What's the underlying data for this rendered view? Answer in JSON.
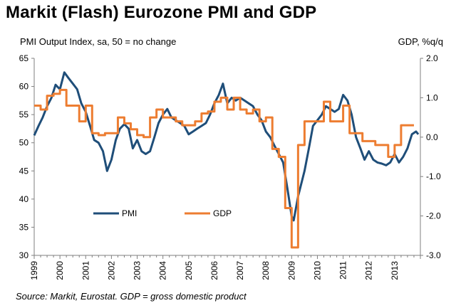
{
  "chart_data": {
    "type": "line",
    "title": "Markit (Flash) Eurozone PMI and GDP",
    "left_axis": {
      "label": "PMI Output Index, sa, 50 = no change",
      "ylim": [
        30,
        65
      ],
      "ticks": [
        "65",
        "60",
        "55",
        "50",
        "45",
        "40",
        "35",
        "30"
      ]
    },
    "right_axis": {
      "label": "GDP, %q/q",
      "ylim": [
        -3.0,
        2.0
      ],
      "ticks": [
        "2.0",
        "1.0",
        "0.0",
        "-1.0",
        "-2.0",
        "-3.0"
      ]
    },
    "x_ticks": [
      "1999",
      "2000",
      "2001",
      "2002",
      "2003",
      "2004",
      "2005",
      "2006",
      "2007",
      "2008",
      "2009",
      "2010",
      "2011",
      "2012",
      "2013"
    ],
    "xlim": [
      1999.0,
      2014.0
    ],
    "grid": false,
    "legend": "inside-bottom-left",
    "series": [
      {
        "name": "PMI",
        "axis": "left",
        "color": "#1F4E79",
        "points": [
          [
            1999.0,
            51.3
          ],
          [
            1999.17,
            53.0
          ],
          [
            1999.33,
            54.5
          ],
          [
            1999.5,
            56.5
          ],
          [
            1999.67,
            58.0
          ],
          [
            1999.83,
            60.3
          ],
          [
            2000.0,
            59.5
          ],
          [
            2000.17,
            62.5
          ],
          [
            2000.33,
            61.5
          ],
          [
            2000.5,
            60.5
          ],
          [
            2000.67,
            59.5
          ],
          [
            2000.83,
            57.0
          ],
          [
            2001.0,
            55.5
          ],
          [
            2001.17,
            53.0
          ],
          [
            2001.33,
            50.5
          ],
          [
            2001.5,
            50.0
          ],
          [
            2001.67,
            48.5
          ],
          [
            2001.83,
            45.0
          ],
          [
            2002.0,
            47.0
          ],
          [
            2002.17,
            50.5
          ],
          [
            2002.33,
            52.5
          ],
          [
            2002.5,
            53.3
          ],
          [
            2002.67,
            52.5
          ],
          [
            2002.83,
            49.0
          ],
          [
            2003.0,
            50.5
          ],
          [
            2003.17,
            48.5
          ],
          [
            2003.33,
            48.0
          ],
          [
            2003.5,
            48.5
          ],
          [
            2003.67,
            51.0
          ],
          [
            2003.83,
            53.5
          ],
          [
            2004.0,
            55.0
          ],
          [
            2004.17,
            56.0
          ],
          [
            2004.33,
            54.5
          ],
          [
            2004.5,
            54.0
          ],
          [
            2004.67,
            53.5
          ],
          [
            2004.83,
            53.0
          ],
          [
            2005.0,
            51.5
          ],
          [
            2005.17,
            52.0
          ],
          [
            2005.33,
            52.5
          ],
          [
            2005.5,
            53.0
          ],
          [
            2005.67,
            53.5
          ],
          [
            2005.83,
            55.0
          ],
          [
            2006.0,
            57.0
          ],
          [
            2006.17,
            58.5
          ],
          [
            2006.33,
            60.5
          ],
          [
            2006.5,
            57.0
          ],
          [
            2006.67,
            58.0
          ],
          [
            2006.83,
            57.5
          ],
          [
            2007.0,
            58.0
          ],
          [
            2007.17,
            57.5
          ],
          [
            2007.33,
            57.0
          ],
          [
            2007.5,
            56.5
          ],
          [
            2007.67,
            55.0
          ],
          [
            2007.83,
            54.0
          ],
          [
            2008.0,
            52.0
          ],
          [
            2008.17,
            51.0
          ],
          [
            2008.33,
            49.5
          ],
          [
            2008.5,
            48.0
          ],
          [
            2008.67,
            46.5
          ],
          [
            2008.83,
            42.0
          ],
          [
            2009.0,
            37.0
          ],
          [
            2009.08,
            36.2
          ],
          [
            2009.25,
            40.5
          ],
          [
            2009.5,
            45.0
          ],
          [
            2009.67,
            49.0
          ],
          [
            2009.83,
            53.0
          ],
          [
            2010.0,
            54.0
          ],
          [
            2010.17,
            55.0
          ],
          [
            2010.33,
            56.5
          ],
          [
            2010.5,
            56.0
          ],
          [
            2010.67,
            55.5
          ],
          [
            2010.83,
            56.0
          ],
          [
            2011.0,
            58.5
          ],
          [
            2011.17,
            57.5
          ],
          [
            2011.33,
            55.0
          ],
          [
            2011.5,
            51.0
          ],
          [
            2011.67,
            49.0
          ],
          [
            2011.83,
            47.0
          ],
          [
            2012.0,
            48.5
          ],
          [
            2012.17,
            47.0
          ],
          [
            2012.33,
            46.5
          ],
          [
            2012.5,
            46.3
          ],
          [
            2012.67,
            46.0
          ],
          [
            2012.83,
            46.5
          ],
          [
            2013.0,
            48.0
          ],
          [
            2013.17,
            46.5
          ],
          [
            2013.33,
            47.5
          ],
          [
            2013.5,
            49.0
          ],
          [
            2013.67,
            51.5
          ],
          [
            2013.83,
            52.0
          ],
          [
            2013.92,
            51.5
          ]
        ]
      },
      {
        "name": "GDP",
        "axis": "right",
        "color": "#ED7D31",
        "points": [
          [
            1999.0,
            0.8
          ],
          [
            1999.25,
            0.7
          ],
          [
            1999.5,
            1.05
          ],
          [
            1999.75,
            1.1
          ],
          [
            2000.0,
            1.2
          ],
          [
            2000.25,
            0.8
          ],
          [
            2000.5,
            0.8
          ],
          [
            2000.75,
            0.4
          ],
          [
            2001.0,
            0.8
          ],
          [
            2001.25,
            0.1
          ],
          [
            2001.5,
            0.05
          ],
          [
            2001.75,
            0.1
          ],
          [
            2002.0,
            0.1
          ],
          [
            2002.25,
            0.5
          ],
          [
            2002.5,
            0.35
          ],
          [
            2002.75,
            0.2
          ],
          [
            2003.0,
            0.05
          ],
          [
            2003.25,
            0.0
          ],
          [
            2003.5,
            0.5
          ],
          [
            2003.75,
            0.7
          ],
          [
            2004.0,
            0.5
          ],
          [
            2004.25,
            0.5
          ],
          [
            2004.5,
            0.4
          ],
          [
            2004.75,
            0.3
          ],
          [
            2005.0,
            0.3
          ],
          [
            2005.25,
            0.4
          ],
          [
            2005.5,
            0.6
          ],
          [
            2005.75,
            0.65
          ],
          [
            2006.0,
            0.9
          ],
          [
            2006.25,
            1.0
          ],
          [
            2006.5,
            0.7
          ],
          [
            2006.75,
            1.0
          ],
          [
            2007.0,
            0.7
          ],
          [
            2007.25,
            0.6
          ],
          [
            2007.5,
            0.7
          ],
          [
            2007.75,
            0.4
          ],
          [
            2008.0,
            0.5
          ],
          [
            2008.25,
            -0.3
          ],
          [
            2008.5,
            -0.5
          ],
          [
            2008.75,
            -1.8
          ],
          [
            2009.0,
            -2.8
          ],
          [
            2009.25,
            -0.2
          ],
          [
            2009.5,
            0.4
          ],
          [
            2009.75,
            0.4
          ],
          [
            2010.0,
            0.4
          ],
          [
            2010.25,
            0.9
          ],
          [
            2010.5,
            0.4
          ],
          [
            2010.75,
            0.4
          ],
          [
            2011.0,
            0.8
          ],
          [
            2011.25,
            0.1
          ],
          [
            2011.5,
            0.1
          ],
          [
            2011.75,
            -0.1
          ],
          [
            2012.0,
            -0.1
          ],
          [
            2012.25,
            -0.2
          ],
          [
            2012.5,
            -0.2
          ],
          [
            2012.75,
            -0.5
          ],
          [
            2013.0,
            -0.2
          ],
          [
            2013.25,
            0.3
          ],
          [
            2013.5,
            0.3
          ]
        ]
      }
    ]
  },
  "source": "Source: Markit, Eurostat. GDP = gross domestic product"
}
